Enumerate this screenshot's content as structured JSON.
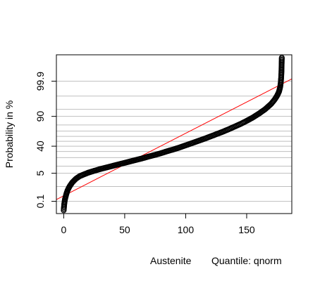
{
  "chart_data": {
    "type": "scatter",
    "xlabel": "Austenite",
    "quantile_label": "Quantile: qnorm",
    "ylabel": "Probability in %",
    "xlim": [
      -6,
      187
    ],
    "x_ticks": [
      0,
      50,
      100,
      150
    ],
    "y_tick_labels": [
      "0.1",
      "5",
      "40",
      "90",
      "99.9"
    ],
    "probability_gridlines": [
      0.1,
      1,
      5,
      10,
      20,
      30,
      40,
      50,
      60,
      70,
      80,
      90,
      95,
      99,
      99.9
    ],
    "ylim_z": [
      -3.72,
      4.45
    ],
    "grid": true,
    "series": [
      {
        "color": "#000000",
        "marker": "open-circle",
        "points_x_z": [
          [
            0.0,
            -3.55
          ],
          [
            0.2,
            -3.4
          ],
          [
            0.5,
            -3.2
          ],
          [
            1.0,
            -3.0
          ],
          [
            2.0,
            -2.75
          ],
          [
            3.0,
            -2.55
          ],
          [
            4.0,
            -2.42
          ],
          [
            5.0,
            -2.3
          ],
          [
            7.0,
            -2.12
          ],
          [
            10.0,
            -1.93
          ],
          [
            13.0,
            -1.8
          ],
          [
            16.0,
            -1.72
          ],
          [
            20.0,
            -1.62
          ],
          [
            25.0,
            -1.52
          ],
          [
            30.0,
            -1.43
          ],
          [
            35.0,
            -1.35
          ],
          [
            40.0,
            -1.27
          ],
          [
            45.0,
            -1.19
          ],
          [
            50.0,
            -1.11
          ],
          [
            55.0,
            -1.03
          ],
          [
            60.0,
            -0.95
          ],
          [
            65.0,
            -0.87
          ],
          [
            70.0,
            -0.78
          ],
          [
            75.0,
            -0.7
          ],
          [
            80.0,
            -0.61
          ],
          [
            85.0,
            -0.51
          ],
          [
            90.0,
            -0.42
          ],
          [
            95.0,
            -0.32
          ],
          [
            100.0,
            -0.21
          ],
          [
            105.0,
            -0.1
          ],
          [
            110.0,
            0.01
          ],
          [
            115.0,
            0.12
          ],
          [
            120.0,
            0.24
          ],
          [
            125.0,
            0.36
          ],
          [
            130.0,
            0.48
          ],
          [
            135.0,
            0.61
          ],
          [
            140.0,
            0.75
          ],
          [
            145.0,
            0.89
          ],
          [
            150.0,
            1.05
          ],
          [
            155.0,
            1.22
          ],
          [
            160.0,
            1.42
          ],
          [
            165.0,
            1.64
          ],
          [
            170.0,
            1.92
          ],
          [
            173.0,
            2.15
          ],
          [
            175.0,
            2.35
          ],
          [
            176.5,
            2.55
          ],
          [
            177.5,
            2.8
          ],
          [
            178.0,
            3.05
          ],
          [
            178.3,
            3.3
          ],
          [
            178.5,
            3.55
          ],
          [
            178.6,
            3.8
          ],
          [
            178.7,
            4.05
          ],
          [
            178.8,
            4.3
          ]
        ]
      }
    ],
    "reference_line": {
      "color": "#ff0000",
      "x": [
        -6,
        187
      ],
      "z": [
        -3.0,
        3.21
      ]
    }
  }
}
